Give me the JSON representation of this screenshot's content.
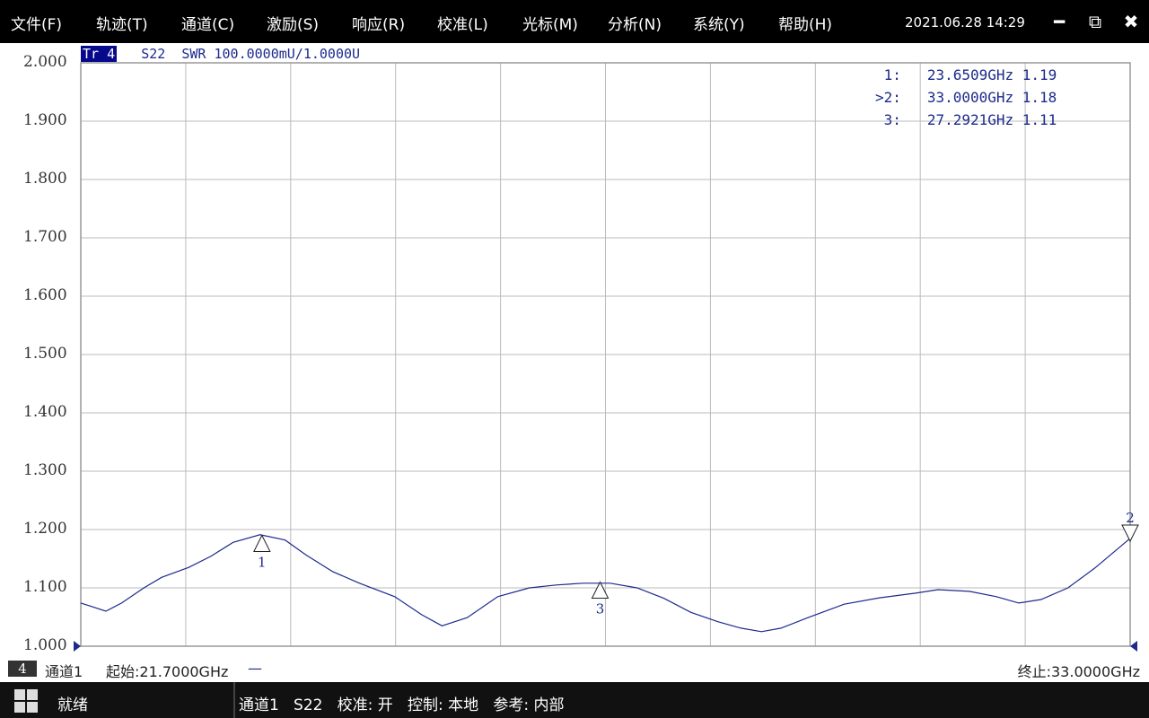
{
  "menu": [
    "文件(F)",
    "轨迹(T)",
    "通道(C)",
    "激励(S)",
    "响应(R)",
    "校准(L)",
    "光标(M)",
    "分析(N)",
    "系统(Y)",
    "帮助(H)"
  ],
  "clock": "2021.06.28 14:29",
  "window_icons": [
    "minimize-icon",
    "restore-icon",
    "close-icon"
  ],
  "trace": {
    "tag": "Tr 4",
    "info": "S22  SWR 100.0000mU/1.0000U",
    "color": "#1c2a8c"
  },
  "y_ticks": [
    "2.000",
    "1.900",
    "1.800",
    "1.700",
    "1.600",
    "1.500",
    "1.400",
    "1.300",
    "1.200",
    "1.100",
    "1.000"
  ],
  "markers_table": [
    {
      "label": " 1:",
      "freq": "23.6509GHz",
      "value": "1.19"
    },
    {
      "label": ">2:",
      "freq": "33.0000GHz",
      "value": "1.18"
    },
    {
      "label": " 3:",
      "freq": "27.2921GHz",
      "value": "1.11"
    }
  ],
  "chart_data": {
    "type": "line",
    "ylim": [
      1.0,
      2.0
    ],
    "xlim_ghz": [
      21.7,
      33.0
    ],
    "grid": true,
    "x": [
      21.7,
      21.8,
      21.97,
      22.14,
      22.38,
      22.57,
      22.86,
      23.1,
      23.34,
      23.63,
      23.9,
      24.12,
      24.41,
      24.7,
      25.08,
      25.37,
      25.59,
      25.86,
      26.19,
      26.53,
      26.82,
      27.11,
      27.4,
      27.69,
      27.98,
      28.27,
      28.56,
      28.81,
      29.03,
      29.24,
      29.53,
      29.92,
      30.3,
      30.69,
      30.93,
      31.27,
      31.56,
      31.8,
      32.04,
      32.33,
      32.62,
      33.0
    ],
    "y": [
      1.074,
      1.069,
      1.06,
      1.074,
      1.1,
      1.118,
      1.135,
      1.154,
      1.178,
      1.191,
      1.182,
      1.157,
      1.128,
      1.108,
      1.085,
      1.054,
      1.035,
      1.049,
      1.085,
      1.1,
      1.105,
      1.108,
      1.108,
      1.1,
      1.082,
      1.058,
      1.042,
      1.031,
      1.025,
      1.031,
      1.049,
      1.072,
      1.083,
      1.091,
      1.097,
      1.094,
      1.085,
      1.074,
      1.08,
      1.1,
      1.134,
      1.185
    ],
    "markers": [
      {
        "id": "1",
        "freq": 23.6509,
        "value": 1.19,
        "dir": "up"
      },
      {
        "id": "2",
        "freq": 33.0,
        "value": 1.18,
        "dir": "down"
      },
      {
        "id": "3",
        "freq": 27.2921,
        "value": 1.11,
        "dir": "up"
      }
    ]
  },
  "bottom": {
    "channel_num": "4",
    "channel": "通道1",
    "start": "起始:21.7000GHz",
    "dash": "—",
    "stop": "终止:33.0000GHz"
  },
  "status": {
    "ready": "就绪",
    "items": "通道1   S22   校准: 开   控制: 本地   参考: 内部"
  }
}
